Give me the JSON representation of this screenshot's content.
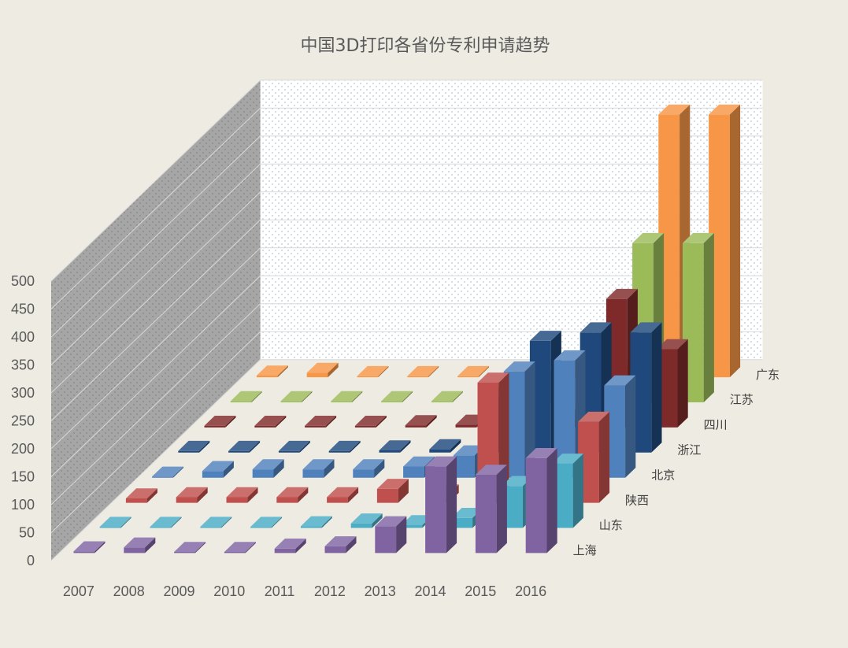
{
  "chart_data": {
    "type": "bar",
    "variant": "3d-column",
    "title": "中国3D打印各省份专利申请趋势",
    "categories": [
      "2007",
      "2008",
      "2009",
      "2010",
      "2011",
      "2012",
      "2013",
      "2014",
      "2015",
      "2016"
    ],
    "ylim": [
      0,
      500
    ],
    "yticks": [
      0,
      50,
      100,
      150,
      200,
      250,
      300,
      350,
      400,
      450,
      500
    ],
    "xlabel": "",
    "ylabel": "",
    "grid": true,
    "series": [
      {
        "name": "上海",
        "color": "#8064a2",
        "values": [
          3,
          10,
          2,
          2,
          8,
          12,
          48,
          155,
          140,
          170
        ]
      },
      {
        "name": "山东",
        "color": "#4bacc6",
        "values": [
          2,
          2,
          2,
          2,
          3,
          8,
          5,
          18,
          75,
          115
        ]
      },
      {
        "name": "陕西",
        "color": "#c0504d",
        "values": [
          8,
          10,
          10,
          10,
          10,
          25,
          15,
          215,
          40,
          145
        ]
      },
      {
        "name": "北京",
        "color": "#4f81bd",
        "values": [
          2,
          12,
          15,
          15,
          15,
          20,
          40,
          190,
          210,
          165
        ]
      },
      {
        "name": "浙江",
        "color": "#1f497d",
        "values": [
          3,
          3,
          3,
          3,
          4,
          6,
          100,
          200,
          215,
          215
        ]
      },
      {
        "name": "四川",
        "color": "#7f2a2a",
        "values": [
          3,
          3,
          3,
          3,
          4,
          5,
          12,
          15,
          230,
          140
        ]
      },
      {
        "name": "江苏",
        "color": "#9bbb59",
        "values": [
          2,
          2,
          2,
          2,
          2,
          18,
          40,
          45,
          285,
          285
        ]
      },
      {
        "name": "广东",
        "color": "#f79646",
        "values": [
          3,
          8,
          2,
          2,
          2,
          2,
          12,
          5,
          470,
          470
        ]
      }
    ]
  }
}
